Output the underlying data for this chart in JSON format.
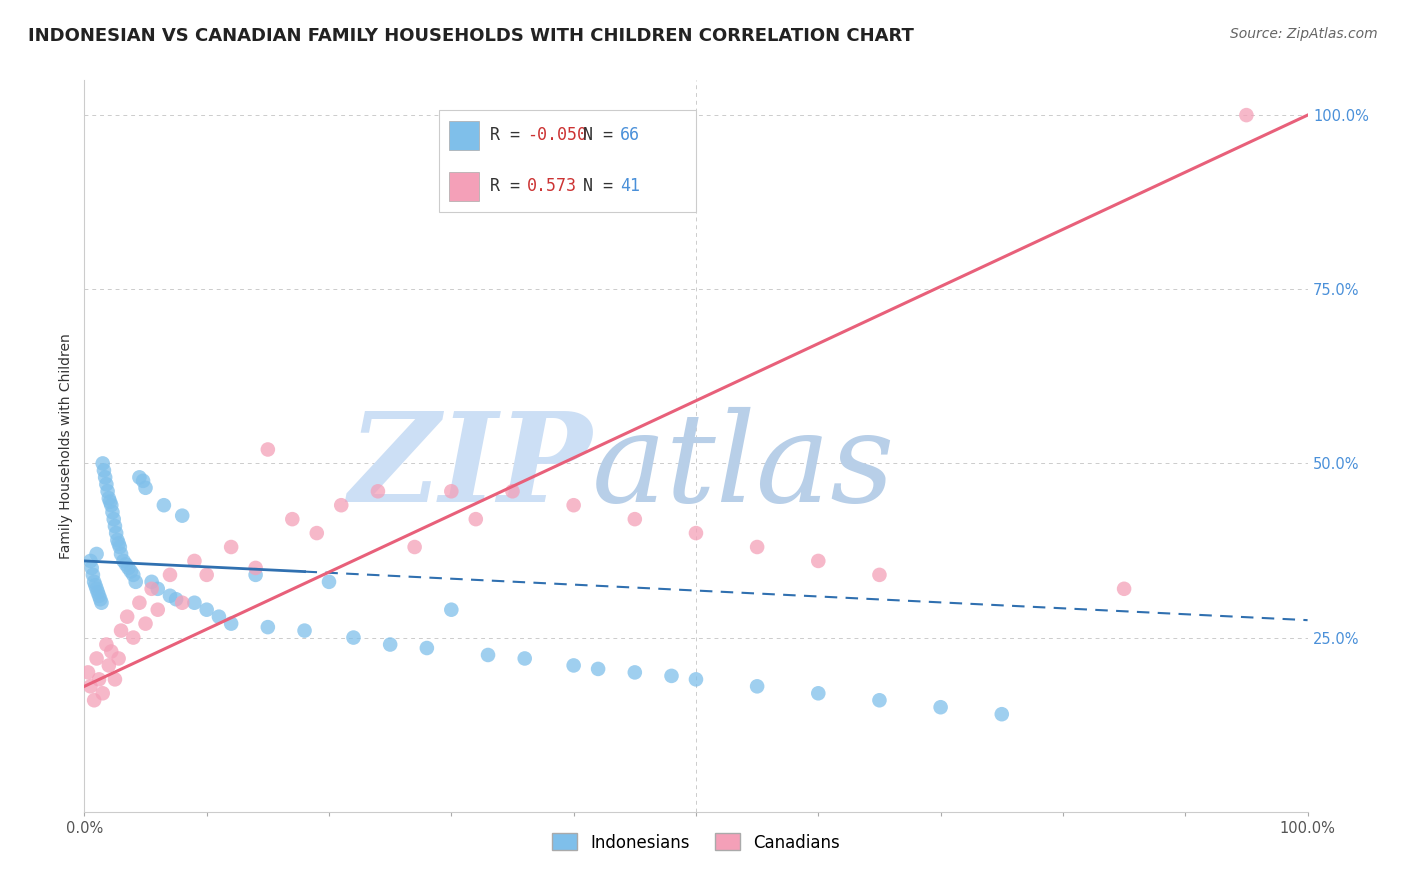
{
  "title": "INDONESIAN VS CANADIAN FAMILY HOUSEHOLDS WITH CHILDREN CORRELATION CHART",
  "source": "Source: ZipAtlas.com",
  "ylabel": "Family Households with Children",
  "xlim": [
    0,
    100
  ],
  "ylim": [
    0,
    105
  ],
  "yticks": [
    0,
    25,
    50,
    75,
    100
  ],
  "ytick_labels": [
    "",
    "25.0%",
    "50.0%",
    "75.0%",
    "100.0%"
  ],
  "xtick_labels": [
    "0.0%",
    "",
    "",
    "",
    "",
    "",
    "",
    "",
    "",
    "",
    "100.0%"
  ],
  "legend_blue_label": "Indonesians",
  "legend_pink_label": "Canadians",
  "R_blue": -0.05,
  "N_blue": 66,
  "R_pink": 0.573,
  "N_pink": 41,
  "blue_color": "#7fbfea",
  "pink_color": "#f4a0b8",
  "blue_line_color": "#3070b0",
  "pink_line_color": "#e8607a",
  "watermark_zip": "ZIP",
  "watermark_atlas": "atlas",
  "watermark_color_zip": "#ccdff5",
  "watermark_color_atlas": "#b8cfe8",
  "indonesian_x": [
    0.5,
    0.6,
    0.7,
    0.8,
    0.9,
    1.0,
    1.0,
    1.1,
    1.2,
    1.3,
    1.4,
    1.5,
    1.6,
    1.7,
    1.8,
    1.9,
    2.0,
    2.1,
    2.2,
    2.3,
    2.4,
    2.5,
    2.6,
    2.7,
    2.8,
    2.9,
    3.0,
    3.2,
    3.4,
    3.6,
    3.8,
    4.0,
    4.2,
    4.5,
    4.8,
    5.0,
    5.5,
    6.0,
    6.5,
    7.0,
    7.5,
    8.0,
    9.0,
    10.0,
    11.0,
    12.0,
    14.0,
    15.0,
    18.0,
    20.0,
    22.0,
    25.0,
    28.0,
    30.0,
    33.0,
    36.0,
    40.0,
    42.0,
    45.0,
    48.0,
    50.0,
    55.0,
    60.0,
    65.0,
    70.0,
    75.0
  ],
  "indonesian_y": [
    36.0,
    35.0,
    34.0,
    33.0,
    32.5,
    32.0,
    37.0,
    31.5,
    31.0,
    30.5,
    30.0,
    50.0,
    49.0,
    48.0,
    47.0,
    46.0,
    45.0,
    44.5,
    44.0,
    43.0,
    42.0,
    41.0,
    40.0,
    39.0,
    38.5,
    38.0,
    37.0,
    36.0,
    35.5,
    35.0,
    34.5,
    34.0,
    33.0,
    48.0,
    47.5,
    46.5,
    33.0,
    32.0,
    44.0,
    31.0,
    30.5,
    42.5,
    30.0,
    29.0,
    28.0,
    27.0,
    34.0,
    26.5,
    26.0,
    33.0,
    25.0,
    24.0,
    23.5,
    29.0,
    22.5,
    22.0,
    21.0,
    20.5,
    20.0,
    19.5,
    19.0,
    18.0,
    17.0,
    16.0,
    15.0,
    14.0
  ],
  "canadian_x": [
    0.3,
    0.5,
    0.8,
    1.0,
    1.2,
    1.5,
    1.8,
    2.0,
    2.2,
    2.5,
    2.8,
    3.0,
    3.5,
    4.0,
    4.5,
    5.0,
    5.5,
    6.0,
    7.0,
    8.0,
    9.0,
    10.0,
    12.0,
    14.0,
    15.0,
    17.0,
    19.0,
    21.0,
    24.0,
    27.0,
    30.0,
    32.0,
    35.0,
    40.0,
    45.0,
    50.0,
    55.0,
    60.0,
    65.0,
    85.0,
    95.0
  ],
  "canadian_y": [
    20.0,
    18.0,
    16.0,
    22.0,
    19.0,
    17.0,
    24.0,
    21.0,
    23.0,
    19.0,
    22.0,
    26.0,
    28.0,
    25.0,
    30.0,
    27.0,
    32.0,
    29.0,
    34.0,
    30.0,
    36.0,
    34.0,
    38.0,
    35.0,
    52.0,
    42.0,
    40.0,
    44.0,
    46.0,
    38.0,
    46.0,
    42.0,
    46.0,
    44.0,
    42.0,
    40.0,
    38.0,
    36.0,
    34.0,
    32.0,
    100.0
  ],
  "blue_line_intercept": 36.0,
  "blue_line_slope": -0.085,
  "blue_line_solid_end": 18,
  "blue_line_dashed_end": 100,
  "pink_line_intercept": 18.0,
  "pink_line_slope": 0.82,
  "grid_color": "#cccccc",
  "background_color": "#ffffff",
  "title_fontsize": 13,
  "axis_label_fontsize": 10,
  "tick_fontsize": 10.5
}
